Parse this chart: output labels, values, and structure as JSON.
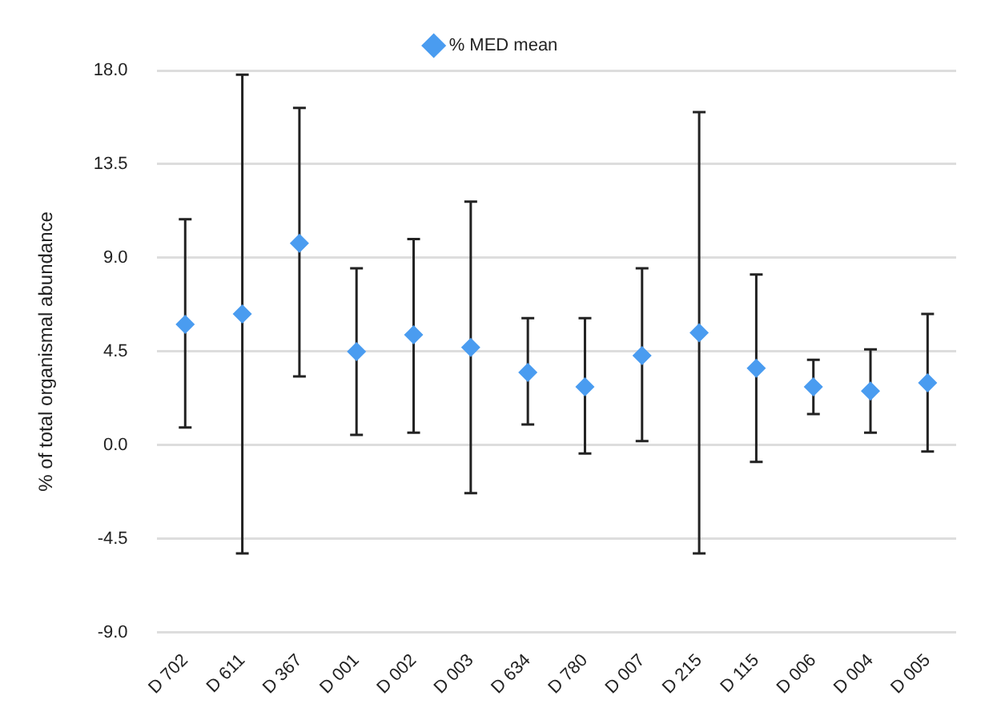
{
  "chart_data": {
    "type": "scatter",
    "ylabel": "% of total organismal abundance",
    "categories": [
      "D 702",
      "D 611",
      "D 367",
      "D 001",
      "D 002",
      "D 003",
      "D 634",
      "D 780",
      "D 007",
      "D 215",
      "D 115",
      "D 006",
      "D 004",
      "D 005"
    ],
    "series": [
      {
        "name": "% MED mean",
        "color": "#4a9cf0",
        "values": [
          5.8,
          6.3,
          9.7,
          4.5,
          5.3,
          4.7,
          3.5,
          2.8,
          4.3,
          5.4,
          3.7,
          2.8,
          2.6,
          3.0
        ],
        "errors": [
          [
            0.85,
            10.85
          ],
          [
            -5.2,
            17.8
          ],
          [
            3.3,
            16.2
          ],
          [
            0.5,
            8.5
          ],
          [
            0.6,
            9.9
          ],
          [
            -2.3,
            11.7
          ],
          [
            1.0,
            6.1
          ],
          [
            -0.4,
            6.1
          ],
          [
            0.2,
            8.5
          ],
          [
            -5.2,
            16.0
          ],
          [
            -0.8,
            8.2
          ],
          [
            1.5,
            4.1
          ],
          [
            0.6,
            4.6
          ],
          [
            -0.3,
            6.3
          ]
        ]
      }
    ],
    "ylim": [
      -9,
      18
    ],
    "yticks": [
      {
        "value": -9,
        "label": "-9.0"
      },
      {
        "value": -4.5,
        "label": "-4.5"
      },
      {
        "value": 0,
        "label": "0.0"
      },
      {
        "value": 4.5,
        "label": "4.5"
      },
      {
        "value": 9,
        "label": "9.0"
      },
      {
        "value": 13.5,
        "label": "13.5"
      },
      {
        "value": 18,
        "label": "18.0"
      }
    ],
    "grid": "y",
    "legend": "top",
    "marker": "diamond"
  }
}
